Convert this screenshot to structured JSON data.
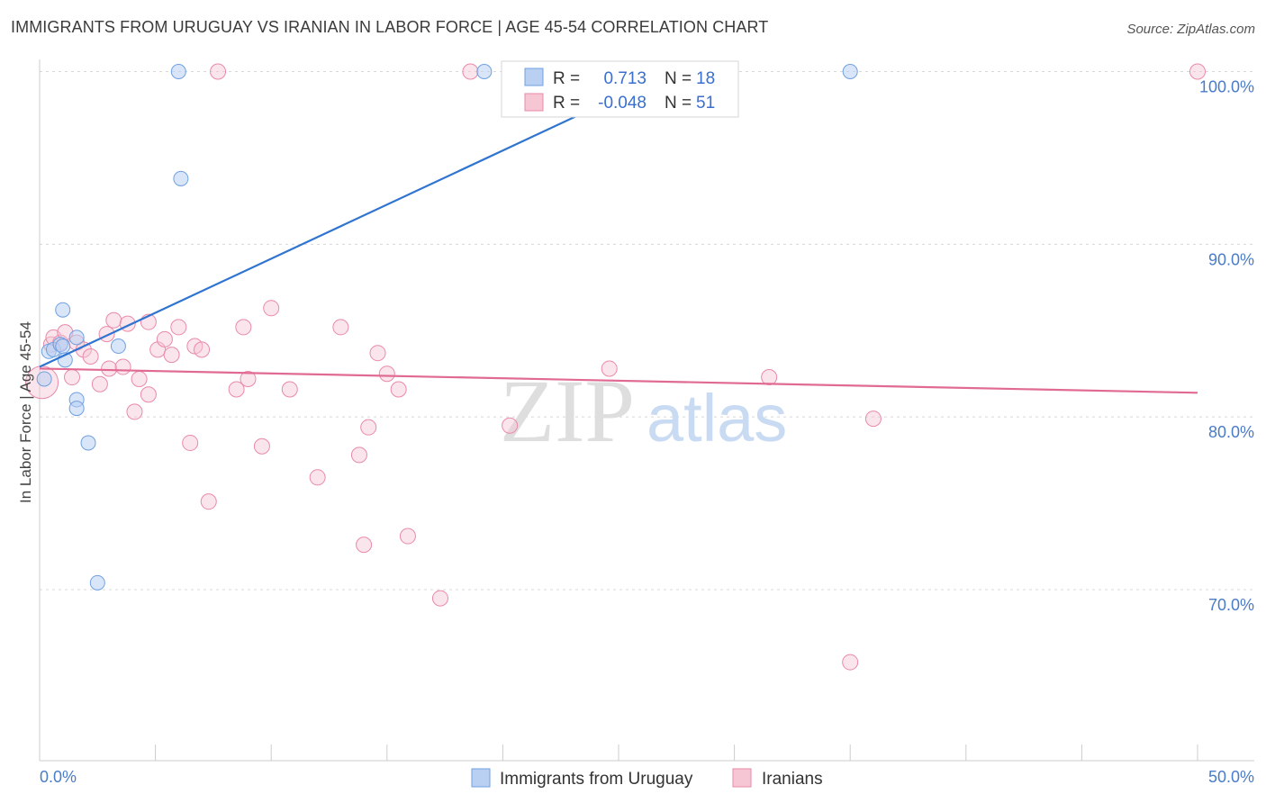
{
  "header": {
    "title": "IMMIGRANTS FROM URUGUAY VS IRANIAN IN LABOR FORCE | AGE 45-54 CORRELATION CHART",
    "source": "Source: ZipAtlas.com"
  },
  "watermark": {
    "zip": "ZIP",
    "atlas": "atlas"
  },
  "colors": {
    "blue": "#6fa0e0",
    "blue_fill": "#b9d0f3",
    "blue_line": "#2f74d0",
    "pink": "#e98aa9",
    "pink_fill": "#f6c6d5",
    "pink_line": "#e06a93"
  },
  "legend": {
    "rows": [
      {
        "r_label": "R =",
        "r_value": "0.713",
        "n_label": "N =",
        "n_value": "18"
      },
      {
        "r_label": "R =",
        "r_value": "-0.048",
        "n_label": "N =",
        "n_value": "51"
      }
    ]
  },
  "chart_data": {
    "type": "scatter",
    "ylabel": "In Labor Force | Age 45-54",
    "xlim": [
      0,
      50
    ],
    "ylim": [
      61.5,
      102
    ],
    "x_tick_labels": {
      "left": "0.0%",
      "right": "50.0%"
    },
    "y_ticks": [
      {
        "value": 100,
        "label": "100.0%"
      },
      {
        "value": 90,
        "label": "90.0%"
      },
      {
        "value": 80,
        "label": "80.0%"
      },
      {
        "value": 70,
        "label": "70.0%"
      }
    ],
    "grid": true,
    "series": [
      {
        "name": "Immigrants from Uruguay",
        "trend": {
          "x0": 0,
          "y0": 82.9,
          "x1": 27.3,
          "y1": 100.0
        },
        "points": [
          [
            0.2,
            82.2
          ],
          [
            0.4,
            83.8
          ],
          [
            0.6,
            83.9
          ],
          [
            0.9,
            84.2
          ],
          [
            1.0,
            84.1
          ],
          [
            1.0,
            86.2
          ],
          [
            1.1,
            83.3
          ],
          [
            1.6,
            84.6
          ],
          [
            1.6,
            81.0
          ],
          [
            1.6,
            80.5
          ],
          [
            2.1,
            78.5
          ],
          [
            2.5,
            70.4
          ],
          [
            3.4,
            84.1
          ],
          [
            6.0,
            100.0
          ],
          [
            6.1,
            93.8
          ],
          [
            19.2,
            100.0
          ],
          [
            23.8,
            100.0
          ],
          [
            35.0,
            100.0
          ]
        ]
      },
      {
        "name": "Iranians",
        "trend": {
          "x0": 0,
          "y0": 82.8,
          "x1": 50,
          "y1": 81.4
        },
        "points": [
          [
            0.1,
            82.0
          ],
          [
            0.5,
            84.2
          ],
          [
            0.6,
            84.6
          ],
          [
            0.9,
            84.3
          ],
          [
            1.1,
            84.9
          ],
          [
            1.4,
            82.3
          ],
          [
            1.6,
            84.3
          ],
          [
            1.9,
            83.9
          ],
          [
            2.2,
            83.5
          ],
          [
            2.6,
            81.9
          ],
          [
            2.9,
            84.8
          ],
          [
            3.0,
            82.8
          ],
          [
            3.2,
            85.6
          ],
          [
            3.6,
            82.9
          ],
          [
            3.8,
            85.4
          ],
          [
            4.1,
            80.3
          ],
          [
            4.3,
            82.2
          ],
          [
            4.7,
            81.3
          ],
          [
            4.7,
            85.5
          ],
          [
            5.1,
            83.9
          ],
          [
            5.4,
            84.5
          ],
          [
            5.7,
            83.6
          ],
          [
            6.0,
            85.2
          ],
          [
            6.5,
            78.5
          ],
          [
            6.7,
            84.1
          ],
          [
            7.0,
            83.9
          ],
          [
            7.3,
            75.1
          ],
          [
            8.5,
            81.6
          ],
          [
            8.8,
            85.2
          ],
          [
            9.0,
            82.2
          ],
          [
            9.6,
            78.3
          ],
          [
            10.0,
            86.3
          ],
          [
            10.8,
            81.6
          ],
          [
            12.0,
            76.5
          ],
          [
            13.0,
            85.2
          ],
          [
            13.8,
            77.8
          ],
          [
            14.0,
            72.6
          ],
          [
            14.2,
            79.4
          ],
          [
            14.6,
            83.7
          ],
          [
            15.0,
            82.5
          ],
          [
            15.5,
            81.6
          ],
          [
            15.9,
            73.1
          ],
          [
            17.3,
            69.5
          ],
          [
            18.6,
            100.0
          ],
          [
            20.3,
            79.5
          ],
          [
            24.6,
            82.8
          ],
          [
            31.5,
            82.3
          ],
          [
            35.0,
            65.8
          ],
          [
            36.0,
            79.9
          ],
          [
            50.0,
            100.0
          ],
          [
            7.7,
            100.0
          ]
        ]
      }
    ]
  },
  "bottom_legend": {
    "items": [
      {
        "label": "Immigrants from Uruguay"
      },
      {
        "label": "Iranians"
      }
    ]
  }
}
